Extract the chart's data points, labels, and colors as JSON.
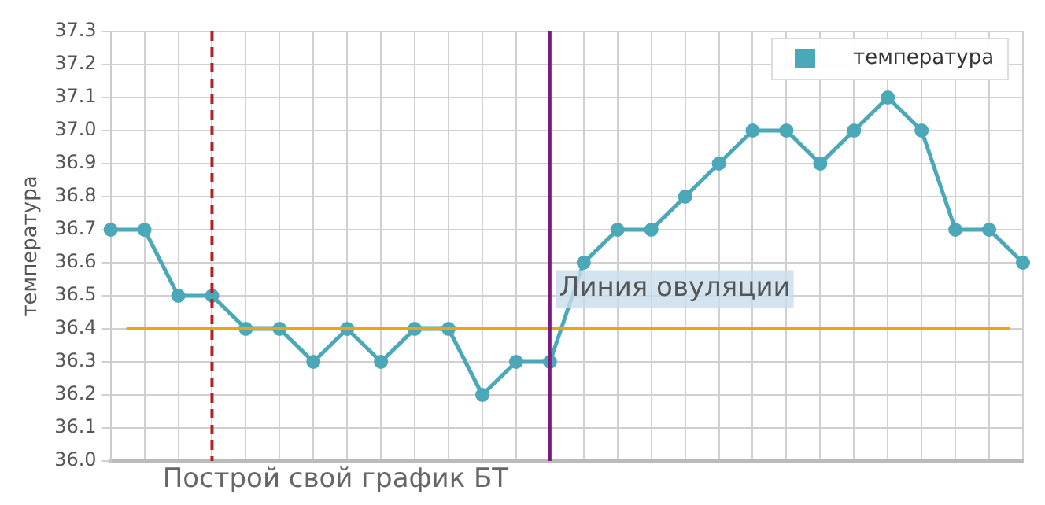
{
  "chart_data": {
    "type": "line",
    "ylabel": "температура",
    "categories": [
      null,
      null,
      null,
      null,
      null,
      null,
      null,
      null,
      null,
      null,
      null,
      null,
      null,
      null,
      null,
      null,
      null,
      null,
      null,
      null,
      null,
      null,
      null,
      null,
      null,
      null,
      null,
      null
    ],
    "series": [
      {
        "name": "температура",
        "color": "#4aa8b8",
        "values": [
          36.7,
          36.7,
          36.5,
          36.5,
          36.4,
          36.4,
          36.3,
          36.4,
          36.3,
          36.4,
          36.4,
          36.2,
          36.3,
          36.3,
          36.6,
          36.7,
          36.7,
          36.8,
          36.9,
          37.0,
          37.0,
          36.9,
          37.0,
          37.1,
          37.0,
          36.7,
          36.7,
          36.6
        ]
      }
    ],
    "ylim": [
      36.0,
      37.3
    ],
    "yticks": [
      {
        "value": 36.0,
        "label": "36.0"
      },
      36.1,
      36.2,
      36.3,
      36.4,
      36.5,
      36.6,
      36.7,
      36.8,
      36.9,
      {
        "value": 37.0,
        "label": "37.0"
      },
      37.1,
      37.2,
      37.3
    ],
    "ref_lines": [
      {
        "axis": "y",
        "value": 36.4,
        "color": "#f0a30a"
      }
    ],
    "annotations": [
      "Построй свой график БТ",
      "Линия овуляции"
    ],
    "grid": true,
    "legend": "top right",
    "marker": "circle",
    "line_style": "solid",
    "tick_labels": "y"
  }
}
